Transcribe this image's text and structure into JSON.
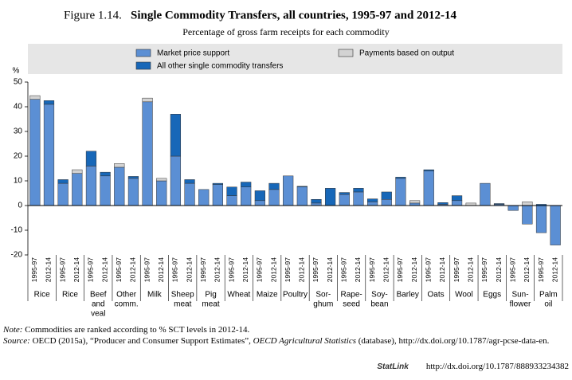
{
  "chart_data": {
    "type": "bar",
    "stacked": true,
    "title_prefix": "Figure 1.14.",
    "title": "Single Commodity Transfers, all countries, 1995-97 and 2012-14",
    "subtitle": "Percentage of gross farm receipts for each commodity",
    "y_unit": "%",
    "periods": [
      "1995-97",
      "2012-14"
    ],
    "groups": [
      [
        "Rice"
      ],
      [
        "Rice"
      ],
      [
        "Beef",
        "and",
        "veal"
      ],
      [
        "Other",
        "comm."
      ],
      [
        "Milk"
      ],
      [
        "Sheep",
        "meat"
      ],
      [
        "Pig",
        "meat"
      ],
      [
        "Wheat"
      ],
      [
        "Maize"
      ],
      [
        "Poultry"
      ],
      [
        "Sor-",
        "ghum"
      ],
      [
        "Rape-",
        "seed"
      ],
      [
        "Soy-",
        "bean"
      ],
      [
        "Barley"
      ],
      [
        "Oats"
      ],
      [
        "Wool"
      ],
      [
        "Eggs"
      ],
      [
        "Sun-",
        "flower"
      ],
      [
        "Palm",
        "oil"
      ]
    ],
    "series": [
      {
        "name": "Market price support",
        "color": "#5b8fd4",
        "values": [
          43,
          41,
          9,
          13,
          16,
          12,
          15.5,
          11,
          42,
          10,
          20,
          9,
          6.5,
          8.5,
          4,
          7.5,
          2,
          6.5,
          12,
          7.5,
          1,
          0,
          4.5,
          5.5,
          1.5,
          2.5,
          11,
          1,
          14,
          0.5,
          2,
          0,
          9,
          0.5,
          -2,
          -7.5,
          -11,
          -16
        ]
      },
      {
        "name": "Payments based on output",
        "color": "#d3d3d3",
        "values": [
          1.5,
          0,
          0,
          1.5,
          0,
          0,
          1.5,
          0,
          1.5,
          1,
          0,
          0,
          0,
          0,
          0,
          0,
          0,
          0,
          0,
          0,
          0,
          0,
          0,
          0,
          0,
          0,
          0,
          1,
          0,
          0,
          0,
          1,
          0,
          0,
          0,
          1.5,
          0,
          0
        ]
      },
      {
        "name": "All other single commodity transfers",
        "color": "#1767b8",
        "values": [
          0,
          1.5,
          1.5,
          0,
          6,
          1.5,
          0,
          0.8,
          0,
          0,
          17,
          1.5,
          0,
          0.5,
          3.5,
          2,
          4,
          2.5,
          0,
          0.3,
          1.5,
          7,
          0.8,
          1.5,
          1.2,
          3,
          0.5,
          0,
          0.5,
          0.7,
          2,
          0,
          0,
          0.3,
          0,
          0,
          0.5,
          0
        ]
      }
    ],
    "ylim": [
      -20,
      50
    ],
    "yticks": [
      -20,
      -10,
      0,
      10,
      20,
      30,
      40,
      50
    ],
    "grid": false,
    "note_label": "Note:",
    "note": "Commodities are ranked according to % SCT levels in 2012-14.",
    "source_label": "Source:",
    "source_parts": [
      "OECD (2015a), “Producer and Consumer Support Estimates”, ",
      "OECD Agricultural Statistics",
      " (database), http://dx.doi.org/10.1787/agr-pcse-data-en."
    ],
    "statlink_label": "StatLink",
    "statlink": "http://dx.doi.org/10.1787/888933234382"
  }
}
